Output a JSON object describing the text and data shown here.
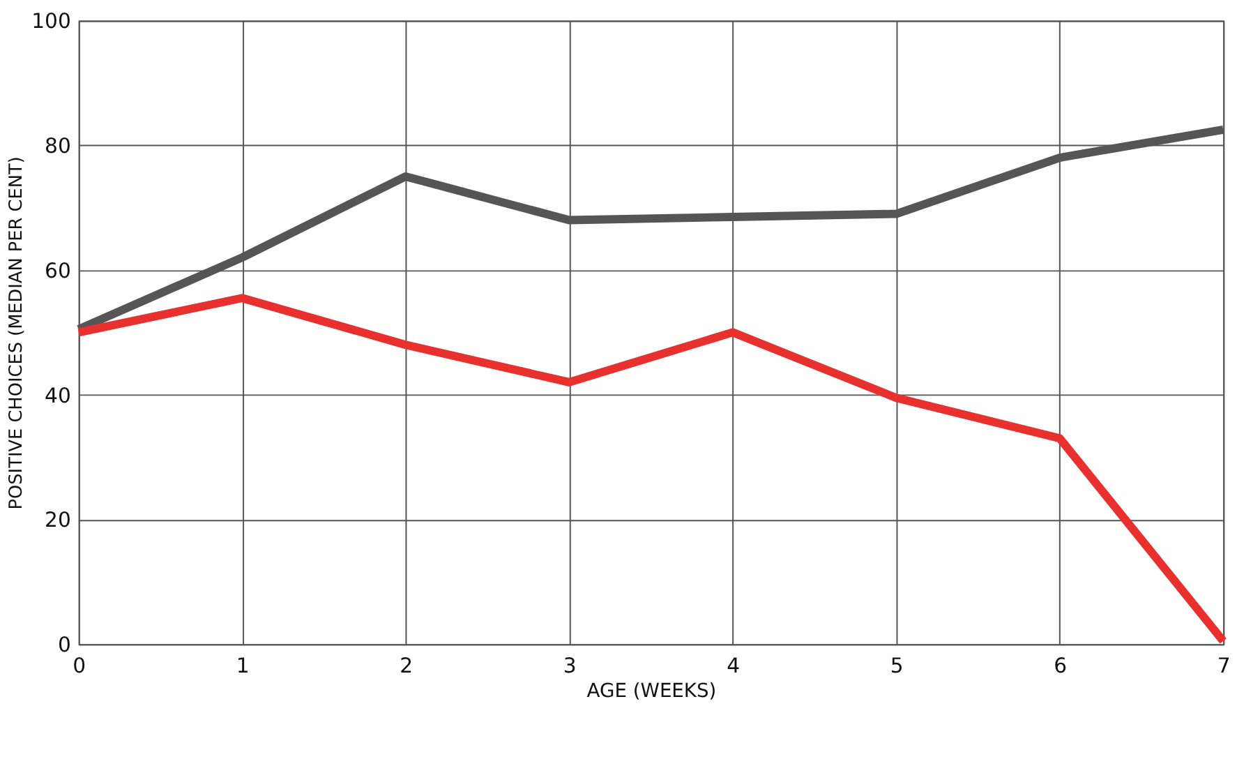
{
  "chart_data": {
    "type": "line",
    "xlabel": "AGE  (WEEKS)",
    "ylabel": "POSITIVE  CHOICES  (MEDIAN PER CENT)",
    "x": [
      0,
      1,
      2,
      3,
      4,
      5,
      6,
      7
    ],
    "series": [
      {
        "color": "#555555",
        "values": [
          50.5,
          62,
          75,
          68,
          68.5,
          69,
          78,
          82.5
        ]
      },
      {
        "color": "#e8302e",
        "values": [
          50,
          55.5,
          48,
          42,
          50,
          39.5,
          33,
          0.5
        ]
      }
    ],
    "xlim": [
      0,
      7
    ],
    "ylim": [
      0,
      100
    ],
    "xticks": [
      0,
      1,
      2,
      3,
      4,
      5,
      6,
      7
    ],
    "yticks": [
      0,
      20,
      40,
      60,
      80,
      100
    ],
    "grid": true,
    "legend": false,
    "marker": "none",
    "line_style": "solid"
  }
}
